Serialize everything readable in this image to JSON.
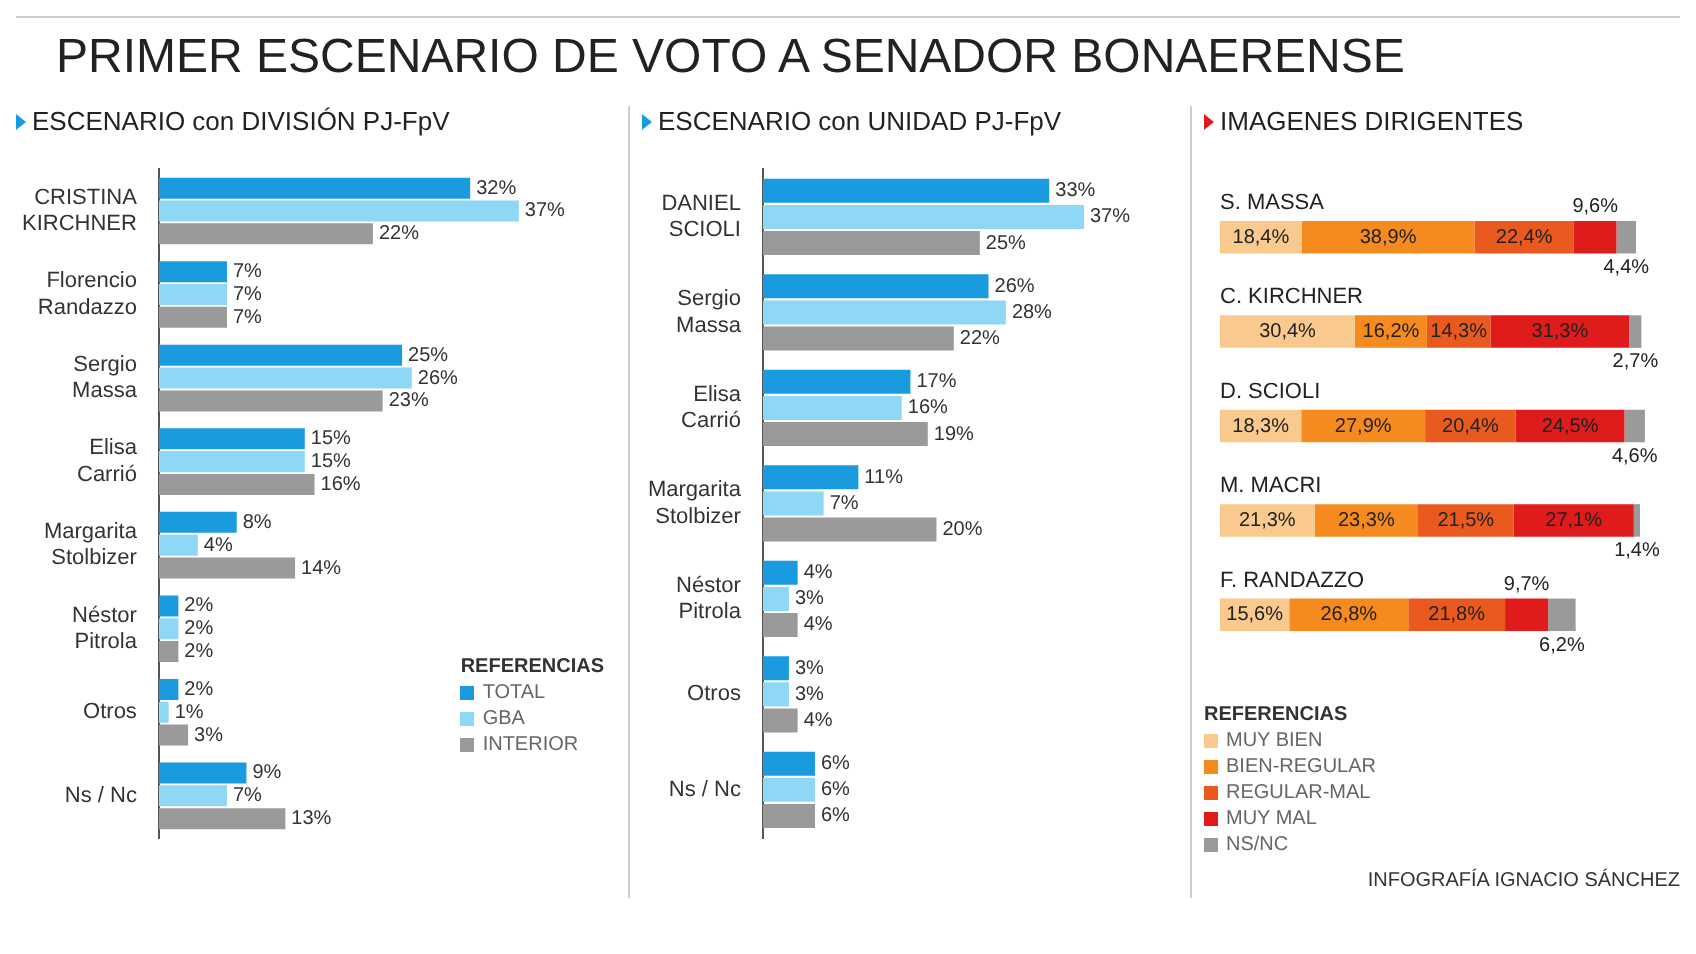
{
  "chart_data": [
    {
      "type": "bar",
      "orientation": "horizontal",
      "title": "PRIMER ESCENARIO DE VOTO A SENADOR BONAERENSE",
      "subtitle": "ESCENARIO con DIVISIÓN PJ-FpV",
      "legend": "bottom right",
      "legend_title": "REFERENCIAS",
      "categories": [
        "CRISTINA KIRCHNER",
        "Florencio Randazzo",
        "Sergio Massa",
        "Elisa Carrió",
        "Margarita Stolbizer",
        "Néstor Pitrola",
        "Otros",
        "Ns / Nc"
      ],
      "series": [
        {
          "name": "TOTAL",
          "color": "#1a9be0",
          "values": [
            32,
            7,
            25,
            15,
            8,
            2,
            2,
            9
          ],
          "value_labels": [
            "32%",
            "7%",
            "25%",
            "15%",
            "8%",
            "2%",
            "2%",
            "9%"
          ]
        },
        {
          "name": "GBA",
          "color": "#8fd8f5",
          "values": [
            37,
            7,
            26,
            15,
            4,
            2,
            1,
            7
          ],
          "value_labels": [
            "37%",
            "7%",
            "26%",
            "15%",
            "4%",
            "2%",
            "1%",
            "7%"
          ]
        },
        {
          "name": "INTERIOR",
          "color": "#9a9a9a",
          "values": [
            22,
            7,
            23,
            16,
            14,
            2,
            3,
            13
          ],
          "value_labels": [
            "22%",
            "7%",
            "23%",
            "16%",
            "14%",
            "2%",
            "3%",
            "13%"
          ]
        }
      ]
    },
    {
      "type": "bar",
      "orientation": "horizontal",
      "subtitle": "ESCENARIO con UNIDAD PJ-FpV",
      "categories": [
        "DANIEL SCIOLI",
        "Sergio Massa",
        "Elisa Carrió",
        "Margarita Stolbizer",
        "Néstor Pitrola",
        "Otros",
        "Ns / Nc"
      ],
      "series": [
        {
          "color": "#1a9be0",
          "values": [
            33,
            26,
            17,
            11,
            4,
            3,
            6
          ],
          "value_labels": [
            "33%",
            "26%",
            "17%",
            "11%",
            "4%",
            "3%",
            "6%"
          ]
        },
        {
          "color": "#8fd8f5",
          "values": [
            37,
            28,
            16,
            7,
            3,
            3,
            6
          ],
          "value_labels": [
            "37%",
            "28%",
            "16%",
            "7%",
            "3%",
            "3%",
            "6%"
          ]
        },
        {
          "color": "#9a9a9a",
          "values": [
            25,
            22,
            19,
            20,
            4,
            4,
            6
          ],
          "value_labels": [
            "25%",
            "22%",
            "19%",
            "20%",
            "4%",
            "4%",
            "6%"
          ]
        }
      ]
    },
    {
      "type": "bar",
      "orientation": "horizontal",
      "stacked": true,
      "subtitle": "IMAGENES DIRIGENTES",
      "legend": "bottom",
      "legend_title": "REFERENCIAS",
      "annotations": [
        "INFOGRAFÍA IGNACIO SÁNCHEZ"
      ],
      "categories": [
        "S. MASSA",
        "C. KIRCHNER",
        "D. SCIOLI",
        "M. MACRI",
        "F. RANDAZZO"
      ],
      "series": [
        {
          "name": "MUY BIEN",
          "color": "#f9c98e",
          "values": [
            18.4,
            30.4,
            18.3,
            21.3,
            15.6
          ],
          "value_labels": [
            "18,4%",
            "30,4%",
            "18,3%",
            "21,3%",
            "15,6%"
          ]
        },
        {
          "name": "BIEN-REGULAR",
          "color": "#f58a1f",
          "values": [
            38.9,
            16.2,
            27.9,
            23.3,
            26.8
          ],
          "value_labels": [
            "38,9%",
            "16,2%",
            "27,9%",
            "23,3%",
            "26,8%"
          ]
        },
        {
          "name": "REGULAR-MAL",
          "color": "#ea5a1e",
          "values": [
            22.4,
            14.3,
            20.4,
            21.5,
            21.8
          ],
          "value_labels": [
            "22,4%",
            "14,3%",
            "20,4%",
            "21,5%",
            "21,8%"
          ]
        },
        {
          "name": "MUY MAL",
          "color": "#e01b1b",
          "values": [
            9.6,
            31.3,
            24.5,
            27.1,
            9.7
          ],
          "value_labels": [
            "9,6%",
            "31,3%",
            "24,5%",
            "27,1%",
            "9,7%"
          ]
        },
        {
          "name": "NS/NC",
          "color": "#9a9a9a",
          "values": [
            4.4,
            2.7,
            4.6,
            1.4,
            6.2
          ],
          "value_labels": [
            "4,4%",
            "2,7%",
            "4,6%",
            "1,4%",
            "6,2%"
          ]
        }
      ]
    }
  ]
}
